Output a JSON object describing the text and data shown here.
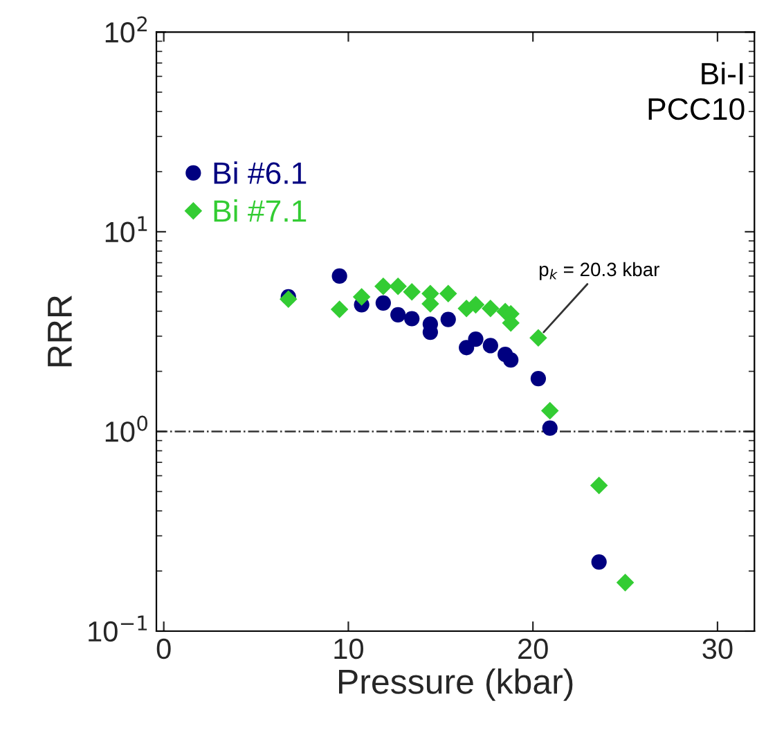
{
  "chart_data": {
    "type": "scatter",
    "xlabel": "Pressure (kbar)",
    "ylabel": "RRR",
    "log": "y",
    "xlim": [
      -0.4,
      32
    ],
    "xticks": [
      0,
      10,
      20,
      30
    ],
    "ylim": [
      0.1,
      100
    ],
    "yticks": [
      {
        "value": 0.1,
        "label": "10$^{−1}$"
      },
      {
        "value": 1,
        "label": "10$^{0}$"
      },
      {
        "value": 10,
        "label": "10$^{1}$"
      },
      {
        "value": 100,
        "label": "10$^{2}$"
      }
    ],
    "grid": false,
    "legend": "top left",
    "series": [
      {
        "name": "Bi #6.1",
        "color": "#000080",
        "marker": "circle",
        "x": [
          6.75,
          9.52,
          10.72,
          11.89,
          12.69,
          13.44,
          14.44,
          14.44,
          15.41,
          16.4,
          16.9,
          17.7,
          18.5,
          18.8,
          20.29,
          20.92,
          23.58
        ],
        "values": [
          4.72,
          6.0,
          4.31,
          4.4,
          3.84,
          3.67,
          3.45,
          3.14,
          3.64,
          2.63,
          2.9,
          2.69,
          2.43,
          2.28,
          1.84,
          1.04,
          0.222
        ]
      },
      {
        "name": "Bi #7.1",
        "color": "#33cc33",
        "marker": "diamond",
        "x": [
          6.75,
          9.52,
          10.72,
          11.89,
          12.69,
          13.44,
          14.44,
          14.44,
          15.41,
          16.4,
          16.9,
          17.7,
          18.5,
          18.8,
          18.8,
          20.29,
          20.92,
          23.58,
          25.0
        ],
        "values": [
          4.6,
          4.09,
          4.72,
          5.33,
          5.33,
          5.0,
          4.9,
          4.36,
          4.9,
          4.13,
          4.31,
          4.13,
          3.98,
          3.88,
          3.49,
          2.94,
          1.27,
          0.536,
          0.175
        ]
      }
    ],
    "ref_lines": [
      {
        "axis": "y",
        "value": 1,
        "color": "#333333",
        "line_style": "dashdot"
      }
    ],
    "annotations": [
      {
        "text": "p$_{k}$ = 20.3 kbar",
        "x": 20.3,
        "y": 2.94
      },
      "Bi-I\nPCC10"
    ]
  }
}
